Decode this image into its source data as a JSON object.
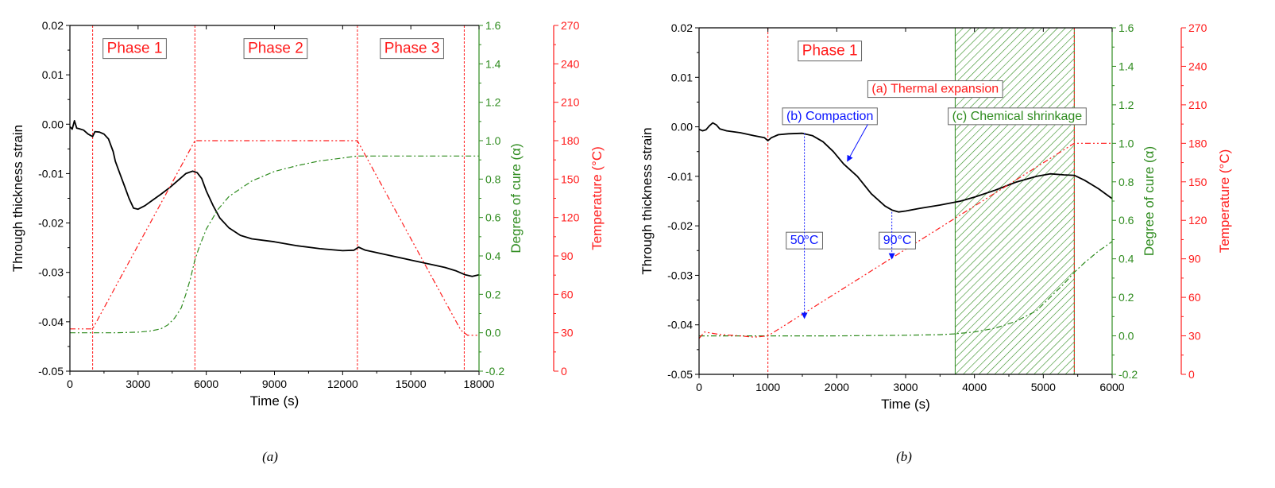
{
  "figure": {
    "caption_a": "(a)",
    "caption_b": "(b)"
  },
  "colors": {
    "strain": "#000000",
    "cure": "#2e8b1e",
    "temperature": "#ff1a1a",
    "annotation_blue": "#0a14ff",
    "hatch": "#2e8b1e"
  },
  "chart_data": [
    {
      "id": "a",
      "type": "line",
      "title": "",
      "xlabel": "Time (s)",
      "ylabel": "Through thickness strain",
      "y2label": "Degree of cure (α)",
      "y3label": "Temperature (°C)",
      "xlim": [
        0,
        18000
      ],
      "ylim": [
        -0.05,
        0.02
      ],
      "y2lim": [
        -0.2,
        1.6
      ],
      "y3lim": [
        0,
        270
      ],
      "xticks": [
        0,
        3000,
        6000,
        9000,
        12000,
        15000,
        18000
      ],
      "xtick_labels": [
        "0",
        "3000",
        "6000",
        "9000",
        "12000",
        "15000",
        "18000"
      ],
      "yticks": [
        -0.05,
        -0.04,
        -0.03,
        -0.02,
        -0.01,
        0.0,
        0.01,
        0.02
      ],
      "ytick_labels": [
        "-0.05",
        "-0.04",
        "-0.03",
        "-0.02",
        "-0.01",
        "0.00",
        "0.01",
        "0.02"
      ],
      "y2ticks": [
        -0.2,
        0.0,
        0.2,
        0.4,
        0.6,
        0.8,
        1.0,
        1.2,
        1.4,
        1.6
      ],
      "y2tick_labels": [
        "-0.2",
        "0.0",
        "0.2",
        "0.4",
        "0.6",
        "0.8",
        "1.0",
        "1.2",
        "1.4",
        "1.6"
      ],
      "y3ticks": [
        0,
        30,
        60,
        90,
        120,
        150,
        180,
        210,
        240,
        270
      ],
      "y3tick_labels": [
        "0",
        "30",
        "60",
        "90",
        "120",
        "150",
        "180",
        "210",
        "240",
        "270"
      ],
      "vlines": [
        1000,
        5500,
        12650,
        17350
      ],
      "series": [
        {
          "name": "Through thickness strain",
          "axis": "y",
          "style": "solid",
          "color": "#000000",
          "x": [
            0,
            100,
            200,
            300,
            400,
            600,
            800,
            1000,
            1100,
            1300,
            1500,
            1700,
            1900,
            2000,
            2200,
            2400,
            2600,
            2800,
            3000,
            3300,
            3600,
            4000,
            4400,
            4800,
            5100,
            5400,
            5600,
            5800,
            6000,
            6300,
            6600,
            7000,
            7500,
            8000,
            9000,
            10000,
            11000,
            12000,
            12500,
            12700,
            13000,
            14000,
            15000,
            16000,
            16500,
            17000,
            17400,
            17700,
            18000
          ],
          "y": [
            -0.0005,
            -0.001,
            0.0007,
            -0.0008,
            -0.0009,
            -0.0012,
            -0.002,
            -0.0025,
            -0.0015,
            -0.0016,
            -0.002,
            -0.003,
            -0.0055,
            -0.0075,
            -0.01,
            -0.0125,
            -0.015,
            -0.017,
            -0.0172,
            -0.0165,
            -0.0155,
            -0.0142,
            -0.0128,
            -0.0112,
            -0.01,
            -0.0095,
            -0.0098,
            -0.011,
            -0.0135,
            -0.0165,
            -0.019,
            -0.021,
            -0.0225,
            -0.0232,
            -0.0238,
            -0.0246,
            -0.0252,
            -0.0256,
            -0.0255,
            -0.0249,
            -0.0255,
            -0.0265,
            -0.0275,
            -0.0285,
            -0.029,
            -0.0297,
            -0.0305,
            -0.0308,
            -0.0305
          ]
        },
        {
          "name": "Degree of cure",
          "axis": "y2",
          "style": "dashdot",
          "color": "#2e8b1e",
          "x": [
            0,
            1000,
            2000,
            3000,
            3500,
            4000,
            4300,
            4600,
            4900,
            5100,
            5300,
            5500,
            5700,
            6000,
            6500,
            7000,
            8000,
            9000,
            10000,
            11000,
            12000,
            12650,
            13000,
            14000,
            15000,
            16000,
            17000,
            18000
          ],
          "y": [
            0.0,
            0.0,
            0.0,
            0.003,
            0.008,
            0.02,
            0.04,
            0.075,
            0.13,
            0.2,
            0.28,
            0.38,
            0.45,
            0.54,
            0.64,
            0.71,
            0.79,
            0.84,
            0.87,
            0.895,
            0.91,
            0.92,
            0.92,
            0.92,
            0.92,
            0.92,
            0.92,
            0.92
          ]
        },
        {
          "name": "Temperature",
          "axis": "y3",
          "style": "dashdotdot",
          "color": "#ff1a1a",
          "x": [
            0,
            1000,
            5500,
            12650,
            17200,
            17500,
            18000
          ],
          "y": [
            33,
            33,
            180,
            180,
            32,
            28,
            28
          ]
        }
      ],
      "annotations": [
        {
          "text": "Phase 1",
          "x": 2850,
          "y": 0.0155
        },
        {
          "text": "Phase 2",
          "x": 9050,
          "y": 0.0155
        },
        {
          "text": "Phase 3",
          "x": 15050,
          "y": 0.0155
        }
      ]
    },
    {
      "id": "b",
      "type": "line",
      "title": "",
      "xlabel": "Time (s)",
      "ylabel": "Through thickness strain",
      "y2label": "Degree of cure (α)",
      "y3label": "Temperature (°C)",
      "xlim": [
        0,
        6000
      ],
      "ylim": [
        -0.05,
        0.02
      ],
      "y2lim": [
        -0.2,
        1.6
      ],
      "y3lim": [
        0,
        270
      ],
      "xticks": [
        0,
        1000,
        2000,
        3000,
        4000,
        5000,
        6000
      ],
      "xtick_labels": [
        "0",
        "1000",
        "2000",
        "3000",
        "4000",
        "5000",
        "6000"
      ],
      "yticks": [
        -0.05,
        -0.04,
        -0.03,
        -0.02,
        -0.01,
        0.0,
        0.01,
        0.02
      ],
      "ytick_labels": [
        "-0.05",
        "-0.04",
        "-0.03",
        "-0.02",
        "-0.01",
        "0.00",
        "0.01",
        "0.02"
      ],
      "y2ticks": [
        -0.2,
        0.0,
        0.2,
        0.4,
        0.6,
        0.8,
        1.0,
        1.2,
        1.4,
        1.6
      ],
      "y2tick_labels": [
        "-0.2",
        "0.0",
        "0.2",
        "0.4",
        "0.6",
        "0.8",
        "1.0",
        "1.2",
        "1.4",
        "1.6"
      ],
      "y3ticks": [
        0,
        30,
        60,
        90,
        120,
        150,
        180,
        210,
        240,
        270
      ],
      "y3tick_labels": [
        "0",
        "30",
        "60",
        "90",
        "120",
        "150",
        "180",
        "210",
        "240",
        "270"
      ],
      "vlines": [
        1000,
        5450
      ],
      "shaded_range": [
        3720,
        5450
      ],
      "series": [
        {
          "name": "Through thickness strain",
          "axis": "y",
          "style": "solid",
          "color": "#000000",
          "x": [
            0,
            50,
            100,
            150,
            200,
            250,
            300,
            400,
            600,
            800,
            950,
            1000,
            1050,
            1150,
            1300,
            1500,
            1650,
            1800,
            1950,
            2100,
            2300,
            2500,
            2700,
            2800,
            2900,
            3000,
            3200,
            3500,
            3800,
            4000,
            4300,
            4600,
            4900,
            5100,
            5300,
            5450,
            5600,
            5800,
            6000
          ],
          "y": [
            -0.0005,
            -0.0008,
            -0.0006,
            0.0002,
            0.0008,
            0.0004,
            -0.0004,
            -0.0008,
            -0.0012,
            -0.0018,
            -0.0022,
            -0.0028,
            -0.0022,
            -0.0016,
            -0.0014,
            -0.0013,
            -0.0018,
            -0.003,
            -0.005,
            -0.0075,
            -0.01,
            -0.0135,
            -0.016,
            -0.0168,
            -0.0172,
            -0.017,
            -0.0165,
            -0.0158,
            -0.015,
            -0.0142,
            -0.0128,
            -0.0112,
            -0.01,
            -0.0095,
            -0.0097,
            -0.0098,
            -0.0108,
            -0.0125,
            -0.0145
          ]
        },
        {
          "name": "Degree of cure",
          "axis": "y2",
          "style": "dashdot",
          "color": "#2e8b1e",
          "x": [
            0,
            1000,
            2000,
            3000,
            3500,
            3700,
            4000,
            4300,
            4600,
            4900,
            5100,
            5300,
            5450,
            5600,
            5800,
            6000
          ],
          "y": [
            0.0,
            0.0,
            0.0,
            0.003,
            0.006,
            0.01,
            0.02,
            0.04,
            0.075,
            0.13,
            0.2,
            0.27,
            0.33,
            0.38,
            0.44,
            0.49
          ]
        },
        {
          "name": "Temperature",
          "axis": "y3",
          "style": "dashdotdot",
          "color": "#ff1a1a",
          "x": [
            0,
            80,
            300,
            600,
            800,
            1000,
            5450,
            5600,
            6000
          ],
          "y": [
            28,
            33,
            31,
            30,
            29,
            30,
            180,
            180,
            180
          ]
        }
      ],
      "annotations": [
        {
          "text": "Phase 1",
          "x": 1900,
          "y": 0.0155,
          "color": "red"
        },
        {
          "text": "(a) Thermal expansion",
          "x": 3430,
          "y": 0.0078,
          "color": "red"
        },
        {
          "text": "(b) Compaction",
          "x": 1900,
          "y": 0.0023,
          "color": "blue"
        },
        {
          "text": "(c) Chemical shrinkage",
          "x": 4620,
          "y": 0.0023,
          "color": "green"
        },
        {
          "text": "50°C",
          "x": 1530,
          "y": -0.0228,
          "color": "blue"
        },
        {
          "text": "90°C",
          "x": 2880,
          "y": -0.0228,
          "color": "blue"
        }
      ]
    }
  ]
}
